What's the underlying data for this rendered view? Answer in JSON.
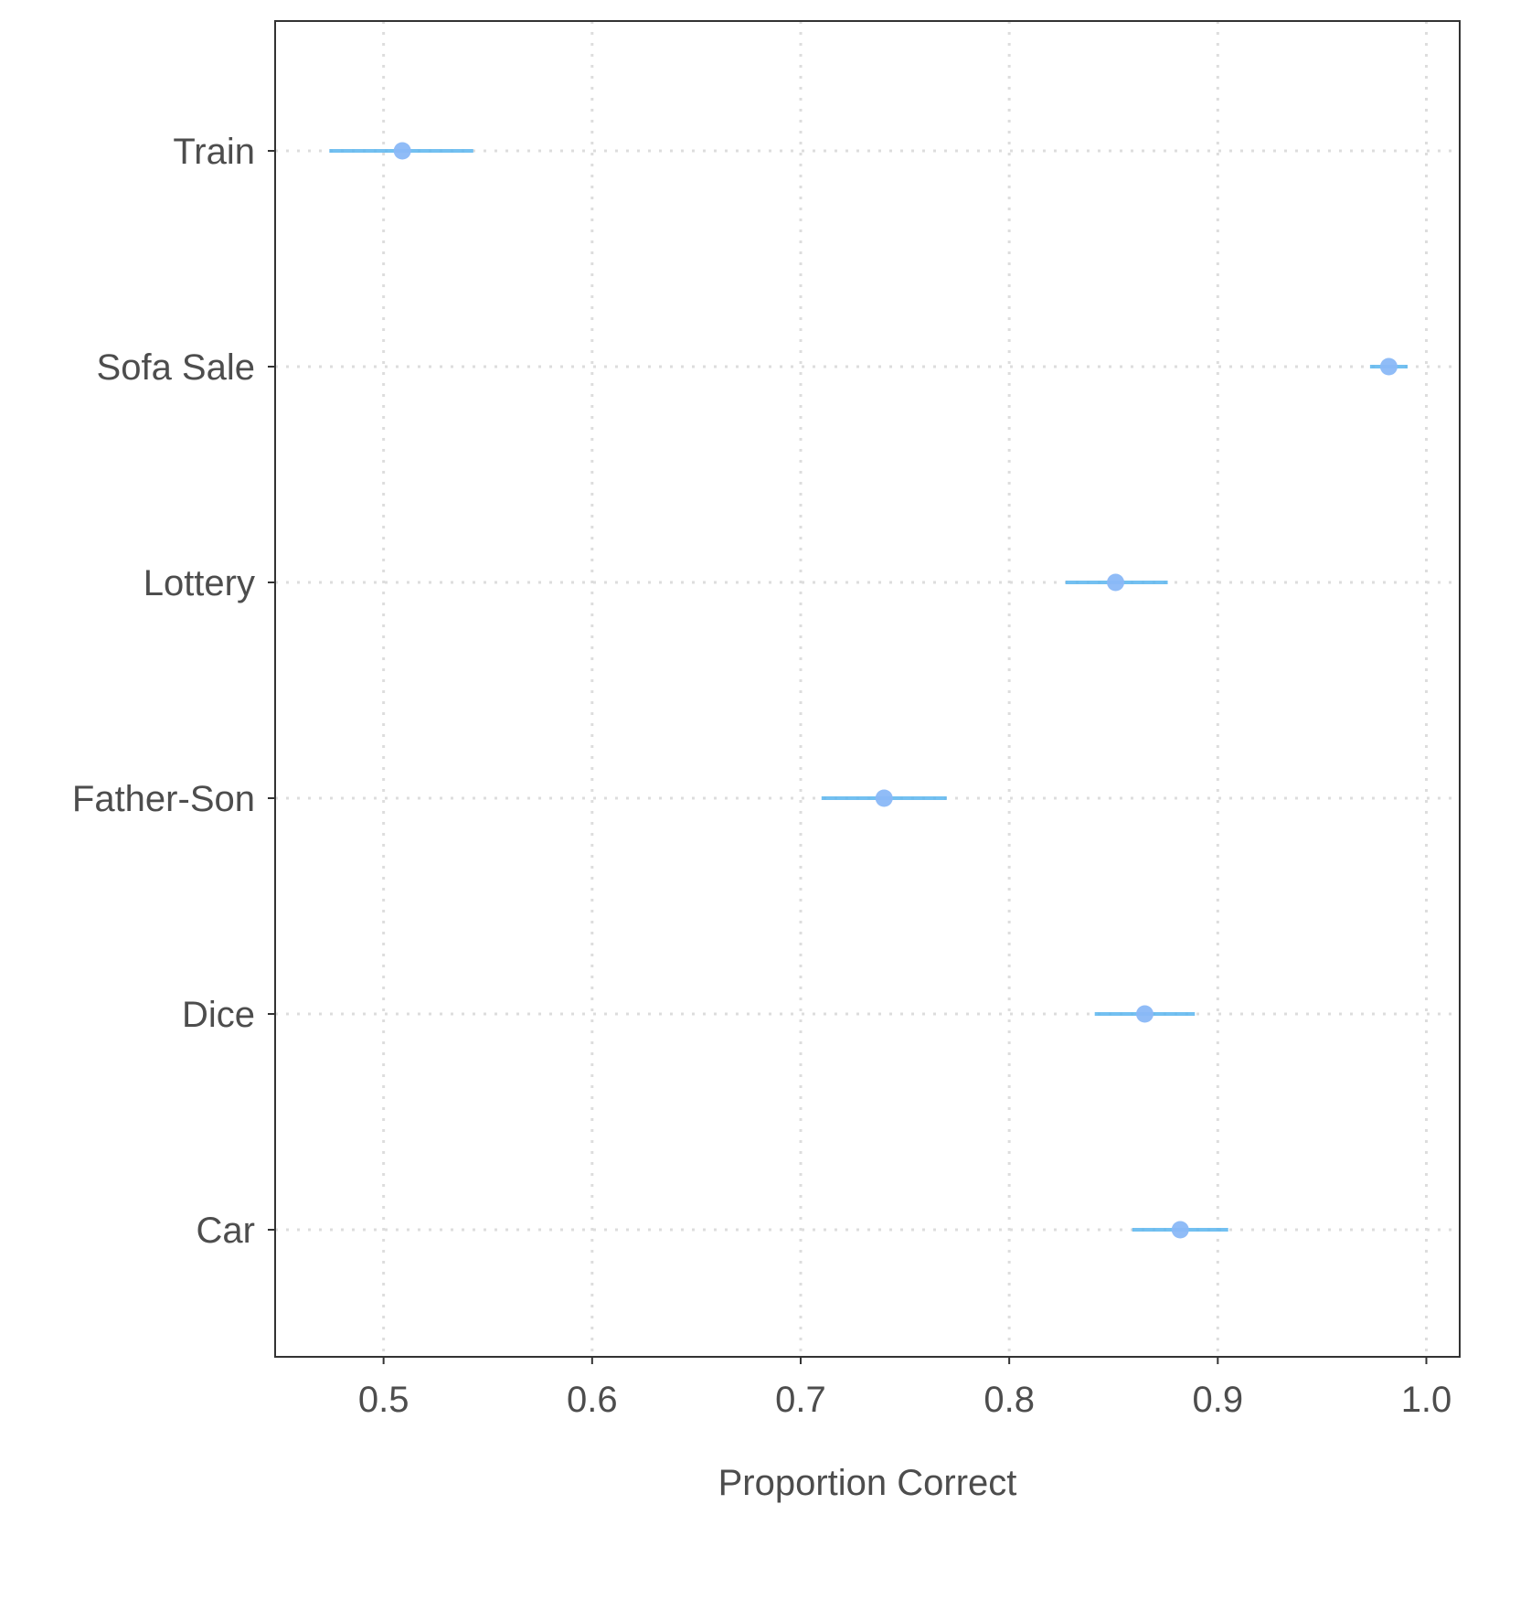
{
  "chart_data": {
    "type": "scatter",
    "subtype": "point-range",
    "title": "",
    "xlabel": "Proportion Correct",
    "ylabel": "",
    "xlim": [
      0.448,
      1.016
    ],
    "x_ticks": [
      0.5,
      0.6,
      0.7,
      0.8,
      0.9,
      1.0
    ],
    "x_tick_labels": [
      "0.5",
      "0.6",
      "0.7",
      "0.8",
      "0.9",
      "1.0"
    ],
    "categories": [
      "Train",
      "Sofa Sale",
      "Lottery",
      "Father-Son",
      "Dice",
      "Car"
    ],
    "values": [
      0.509,
      0.982,
      0.851,
      0.74,
      0.865,
      0.882
    ],
    "lower": [
      0.474,
      0.973,
      0.827,
      0.71,
      0.841,
      0.859
    ],
    "upper": [
      0.543,
      0.991,
      0.876,
      0.77,
      0.889,
      0.905
    ],
    "grid": "dotted",
    "colors": {
      "point": "#8ab8f7",
      "interval": "#5bb5ef",
      "grid": "#dddddd",
      "frame": "#333333",
      "text": "#4d4d4d"
    }
  }
}
